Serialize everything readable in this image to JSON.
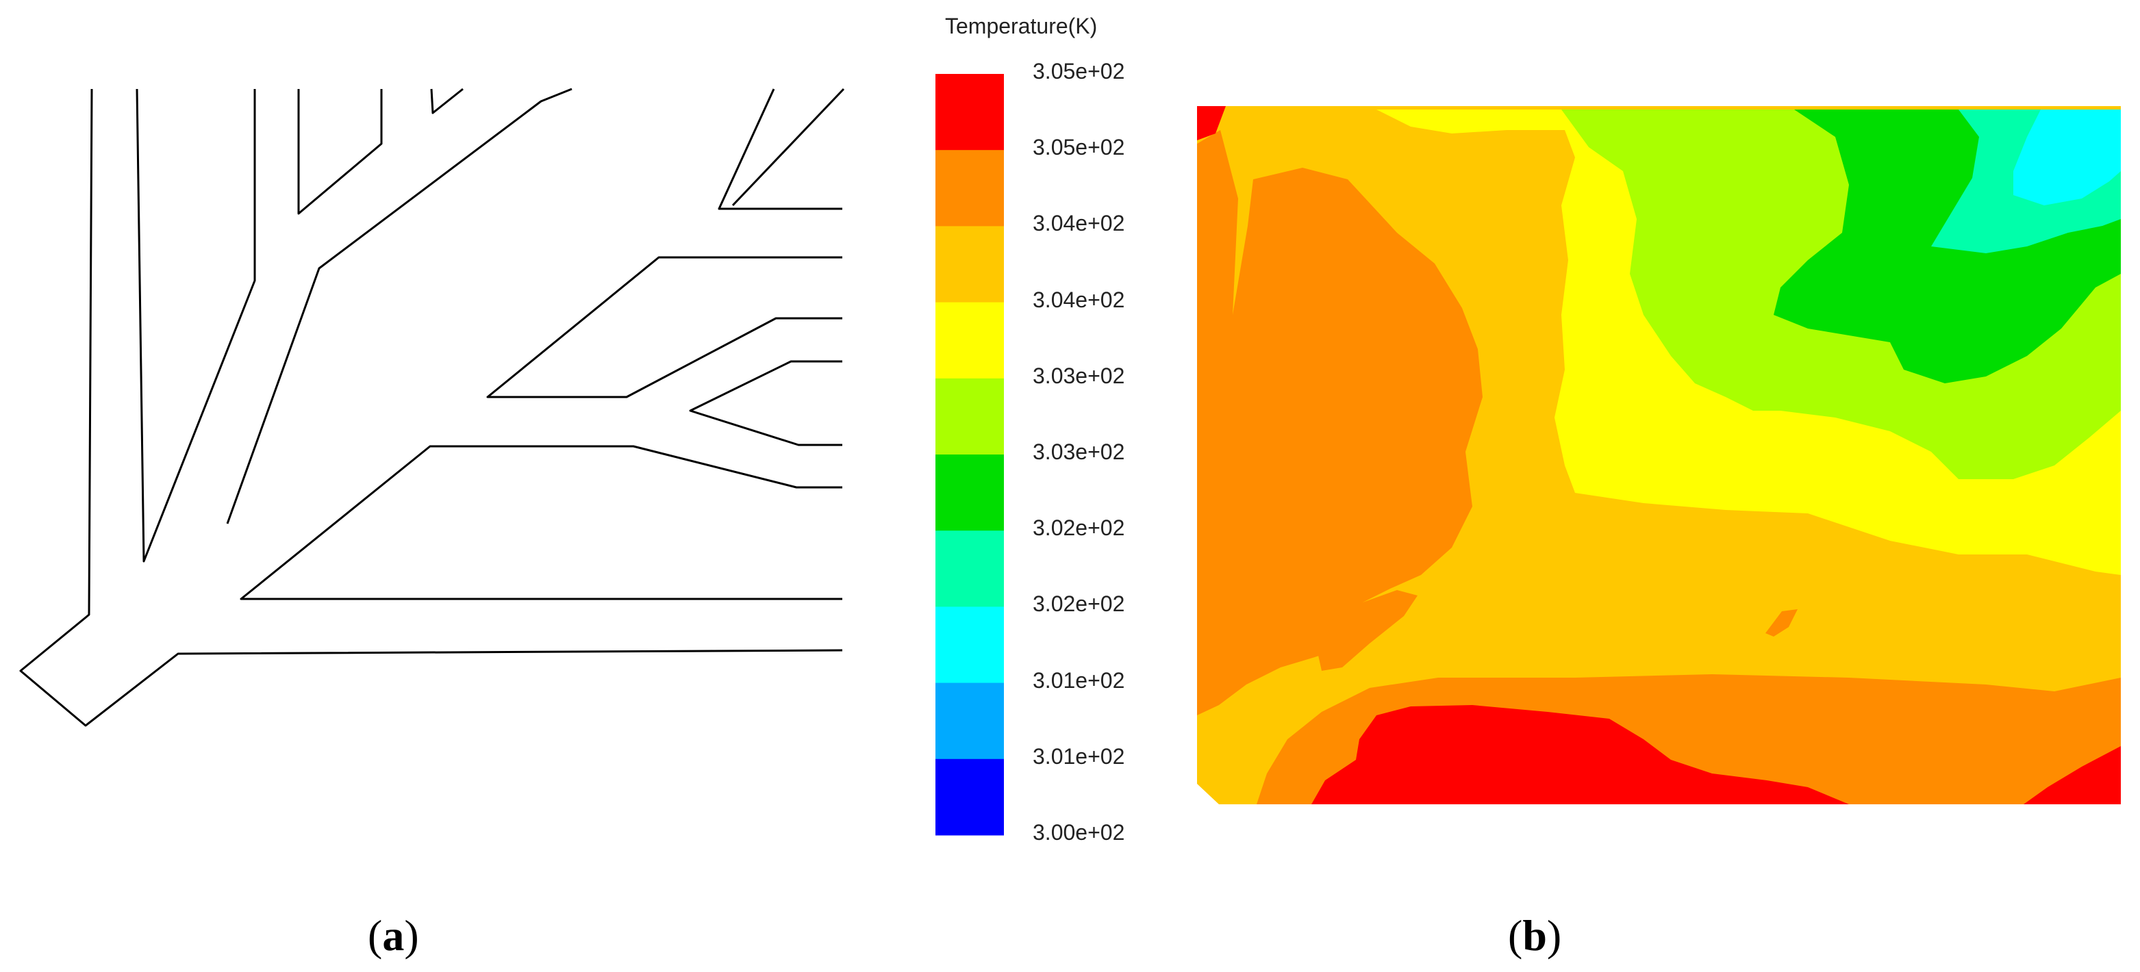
{
  "legend": {
    "title": "Temperature(K)",
    "tick_labels": [
      "3.05e+02",
      "3.05e+02",
      "3.04e+02",
      "3.04e+02",
      "3.03e+02",
      "3.03e+02",
      "3.02e+02",
      "3.02e+02",
      "3.01e+02",
      "3.01e+02",
      "3.00e+02"
    ],
    "band_colors": [
      "#ff0000",
      "#ff8c00",
      "#ffc800",
      "#ffff00",
      "#aaff00",
      "#00dd00",
      "#00ffaa",
      "#00ffff",
      "#00aaff",
      "#0000ff"
    ]
  },
  "panels": {
    "a": {
      "open": "(",
      "letter": "a",
      "close": ")"
    },
    "b": {
      "open": "(",
      "letter": "b",
      "close": ")"
    }
  }
}
